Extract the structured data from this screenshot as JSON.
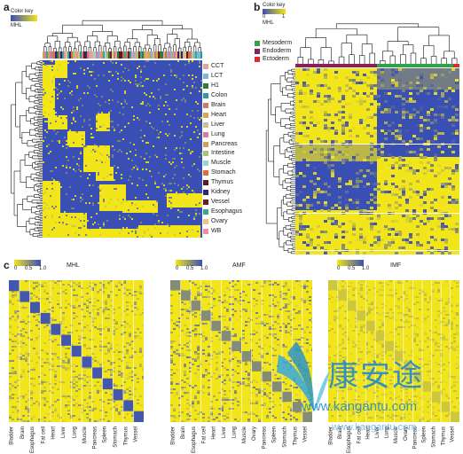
{
  "panel_a": {
    "label": "a",
    "key_title": "Color key",
    "key_axis": "MHL",
    "legend": [
      {
        "name": "CCT",
        "color": "#e3a39a"
      },
      {
        "name": "LCT",
        "color": "#7db7d8"
      },
      {
        "name": "H1",
        "color": "#2f7d3a"
      },
      {
        "name": "Colon",
        "color": "#2e9a9a"
      },
      {
        "name": "Brain",
        "color": "#c97c6e"
      },
      {
        "name": "Heart",
        "color": "#d6a84a"
      },
      {
        "name": "Liver",
        "color": "#c9c19a"
      },
      {
        "name": "Lung",
        "color": "#e07a9a"
      },
      {
        "name": "Pancreas",
        "color": "#c9a45a"
      },
      {
        "name": "Intestine",
        "color": "#a7c27b"
      },
      {
        "name": "Muscle",
        "color": "#9ed3d3"
      },
      {
        "name": "Stomach",
        "color": "#e06c3c"
      },
      {
        "name": "Thymus",
        "color": "#5a1a2a"
      },
      {
        "name": "Kidney",
        "color": "#2b2b6b"
      },
      {
        "name": "Vessel",
        "color": "#6b1f1f"
      },
      {
        "name": "Esophagus",
        "color": "#3aa88c"
      },
      {
        "name": "Ovary",
        "color": "#e8c68a"
      },
      {
        "name": "WB",
        "color": "#f28ca0"
      }
    ]
  },
  "panel_b": {
    "label": "b",
    "key_title": "Color key",
    "key_ticks": [
      "0",
      "1"
    ],
    "key_axis": "MHL",
    "legend": [
      {
        "name": "Mesoderm",
        "color": "#2fa24a"
      },
      {
        "name": "Endoderm",
        "color": "#8a1f5a"
      },
      {
        "name": "Ectoderm",
        "color": "#e02a2a"
      }
    ]
  },
  "panel_c": {
    "label": "c",
    "heatmaps": [
      {
        "title": "MHL",
        "key_ticks": [
          "0",
          "0.5",
          "1.0"
        ],
        "tissues": [
          "Bladder",
          "Brain",
          "Esophagus",
          "Fat cell",
          "Heart",
          "Liver",
          "Lung",
          "Muscle",
          "Pancreas",
          "Spleen",
          "Stomach",
          "Thymus",
          "Vessel"
        ]
      },
      {
        "title": "AMF",
        "key_ticks": [
          "0",
          "0.5",
          "1.0"
        ],
        "tissues": [
          "Bladder",
          "Brain",
          "Esophagus",
          "Fat cell",
          "Heart",
          "Liver",
          "Lung",
          "Muscle",
          "Ovary",
          "Pancreas",
          "Spleen",
          "Stomach",
          "Thymus",
          "Vessel"
        ]
      },
      {
        "title": "IMF",
        "key_ticks": [
          "0",
          "0.5",
          "1.0"
        ],
        "tissues": [
          "Bladder",
          "Brain",
          "Esophagus",
          "Fat cell",
          "Heart",
          "Liver",
          "Lung",
          "Muscle",
          "Ovary",
          "Pancreas",
          "Spleen",
          "Stomach",
          "Thymus",
          "Vessel"
        ]
      }
    ]
  },
  "colors": {
    "high": "#f2e51a",
    "low": "#3a4fb4",
    "mid": "#8e9a86"
  },
  "watermark": {
    "chinese": "康安途",
    "url": "www.kangantu.com"
  }
}
